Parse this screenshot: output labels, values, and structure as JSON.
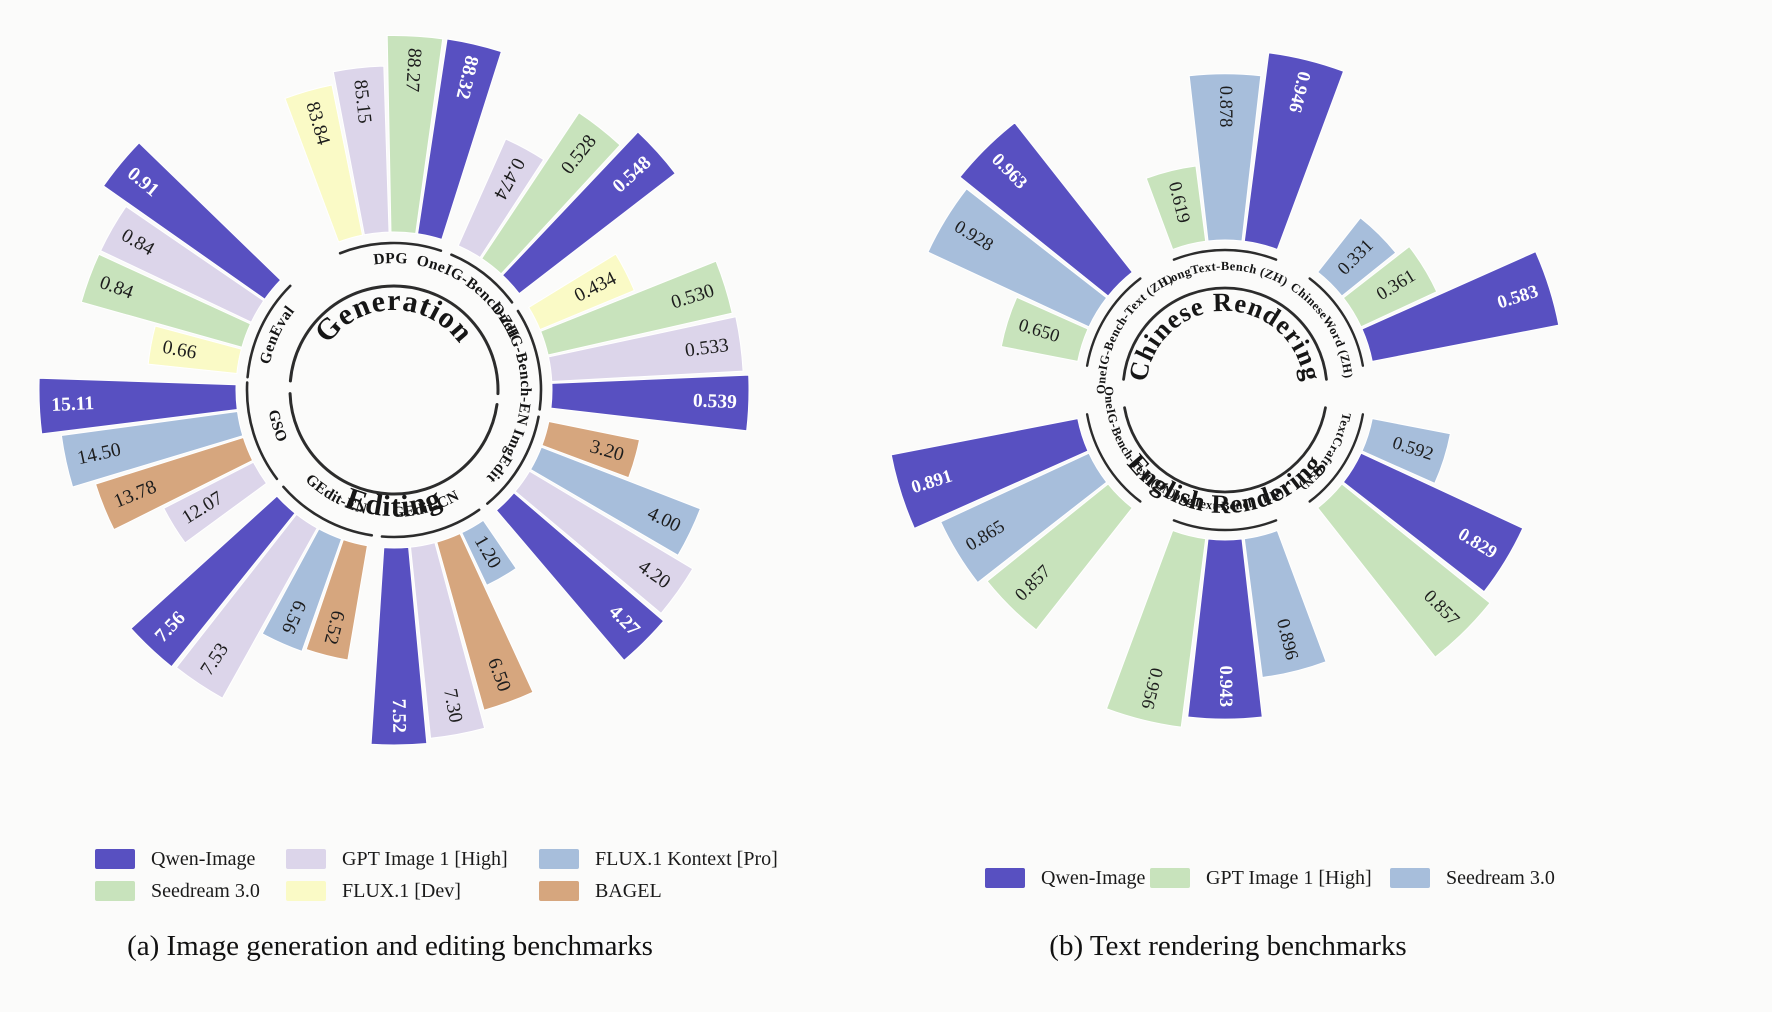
{
  "chart_data": [
    {
      "type": "radial_grouped_bar",
      "caption": "(a) Image generation and editing benchmarks",
      "series_colors": {
        "Qwen-Image": "#5850c1",
        "Seedream 3.0": "#c8e3bc",
        "GPT Image 1 [High]": "#dcd5ea",
        "FLUX.1 [Dev]": "#fafac6",
        "FLUX.1 Kontext [Pro]": "#a7bedb",
        "BAGEL": "#d6a67e"
      },
      "legend_columns": [
        [
          "Qwen-Image",
          "Seedream 3.0"
        ],
        [
          "GPT Image 1 [High]",
          "FLUX.1 [Dev]"
        ],
        [
          "FLUX.1 Kontext [Pro]",
          "BAGEL"
        ]
      ],
      "semicircles": [
        {
          "title": "Generation",
          "side": "top",
          "groups": [
            {
              "label": "GenEval",
              "start_angle": -84,
              "bars": [
                {
                  "model": "FLUX.1 [Dev]",
                  "value": "0.66"
                },
                {
                  "model": "Seedream 3.0",
                  "value": "0.84"
                },
                {
                  "model": "GPT Image 1 [High]",
                  "value": "0.84"
                },
                {
                  "model": "Qwen-Image",
                  "value": "0.91"
                }
              ]
            },
            {
              "label": "DPG",
              "start_angle": -20.5,
              "bars": [
                {
                  "model": "FLUX.1 [Dev]",
                  "value": "83.84"
                },
                {
                  "model": "GPT Image 1 [High]",
                  "value": "85.15"
                },
                {
                  "model": "Seedream 3.0",
                  "value": "88.27"
                },
                {
                  "model": "Qwen-Image",
                  "value": "88.32"
                }
              ]
            },
            {
              "label": "OneIG-Bench-ZH",
              "start_angle": 24,
              "bars": [
                {
                  "model": "GPT Image 1 [High]",
                  "value": "0.474"
                },
                {
                  "model": "Seedream 3.0",
                  "value": "0.528"
                },
                {
                  "model": "Qwen-Image",
                  "value": "0.548"
                }
              ]
            },
            {
              "label": "OneIG-Bench-EN",
              "start_angle": 58.5,
              "bars": [
                {
                  "model": "FLUX.1 [Dev]",
                  "value": "0.434"
                },
                {
                  "model": "Seedream 3.0",
                  "value": "0.530"
                },
                {
                  "model": "GPT Image 1 [High]",
                  "value": "0.533"
                },
                {
                  "model": "Qwen-Image",
                  "value": "0.539"
                }
              ]
            }
          ]
        },
        {
          "title": "Editing",
          "side": "bottom",
          "groups": [
            {
              "label": "ImgEdit",
              "start_angle": 101.5,
              "bars": [
                {
                  "model": "BAGEL",
                  "value": "3.20"
                },
                {
                  "model": "FLUX.1 Kontext [Pro]",
                  "value": "4.00"
                },
                {
                  "model": "GPT Image 1 [High]",
                  "value": "4.20"
                },
                {
                  "model": "Qwen-Image",
                  "value": "4.27"
                }
              ]
            },
            {
              "label": "GEdit-CN",
              "start_angle": 145.6,
              "bars": [
                {
                  "model": "FLUX.1 Kontext [Pro]",
                  "value": "1.20"
                },
                {
                  "model": "BAGEL",
                  "value": "6.50"
                },
                {
                  "model": "GPT Image 1 [High]",
                  "value": "7.30"
                },
                {
                  "model": "Qwen-Image",
                  "value": "7.52"
                }
              ]
            },
            {
              "label": "GEdit-EN",
              "start_angle": 189.7,
              "bars": [
                {
                  "model": "BAGEL",
                  "value": "6.52"
                },
                {
                  "model": "FLUX.1 Kontext [Pro]",
                  "value": "6.56"
                },
                {
                  "model": "GPT Image 1 [High]",
                  "value": "7.53"
                },
                {
                  "model": "Qwen-Image",
                  "value": "7.56"
                }
              ]
            },
            {
              "label": "GSO",
              "start_angle": 233.8,
              "bars": [
                {
                  "model": "GPT Image 1 [High]",
                  "value": "12.07"
                },
                {
                  "model": "BAGEL",
                  "value": "13.78"
                },
                {
                  "model": "FLUX.1 Kontext [Pro]",
                  "value": "14.50"
                },
                {
                  "model": "Qwen-Image",
                  "value": "15.11"
                }
              ]
            }
          ]
        }
      ]
    },
    {
      "type": "radial_grouped_bar",
      "caption": "(b) Text rendering benchmarks",
      "series_colors": {
        "Qwen-Image": "#5850c1",
        "GPT Image 1 [High]": "#c8e3bc",
        "Seedream 3.0": "#a7bedb"
      },
      "legend_columns": [
        [
          "Qwen-Image"
        ],
        [
          "GPT Image 1 [High]"
        ],
        [
          "Seedream 3.0"
        ]
      ],
      "semicircles": [
        {
          "title": "Chinese Rendering",
          "side": "top",
          "groups": [
            {
              "label": "OneIG-Bench-Text  (ZH)",
              "start_angle": -79,
              "bars": [
                {
                  "model": "GPT Image 1 [High]",
                  "value": "0.650"
                },
                {
                  "model": "Seedream 3.0",
                  "value": "0.928"
                },
                {
                  "model": "Qwen-Image",
                  "value": "0.963"
                }
              ]
            },
            {
              "label": "LongText-Bench  (ZH)",
              "start_angle": -20.4,
              "bars": [
                {
                  "model": "GPT Image 1 [High]",
                  "value": "0.619"
                },
                {
                  "model": "Seedream 3.0",
                  "value": "0.878"
                },
                {
                  "model": "Qwen-Image",
                  "value": "0.946"
                }
              ]
            },
            {
              "label": "ChineseWord  (ZH)",
              "start_angle": 38.2,
              "bars": [
                {
                  "model": "Seedream 3.0",
                  "value": "0.331"
                },
                {
                  "model": "GPT Image 1 [High]",
                  "value": "0.361"
                },
                {
                  "model": "Qwen-Image",
                  "value": "0.583"
                }
              ]
            }
          ]
        },
        {
          "title": "English Rendering",
          "side": "bottom",
          "groups": [
            {
              "label": "TextCraft  (EN)",
              "start_angle": 101,
              "bars": [
                {
                  "model": "Seedream 3.0",
                  "value": "0.592"
                },
                {
                  "model": "Qwen-Image",
                  "value": "0.829"
                },
                {
                  "model": "GPT Image 1 [High]",
                  "value": "0.857"
                }
              ]
            },
            {
              "label": "LongText-Bench  (EN)",
              "start_angle": 159.6,
              "bars": [
                {
                  "model": "Seedream 3.0",
                  "value": "0.896"
                },
                {
                  "model": "Qwen-Image",
                  "value": "0.943"
                },
                {
                  "model": "GPT Image 1 [High]",
                  "value": "0.956"
                }
              ]
            },
            {
              "label": "OneIG-Bench-Text  (EN)",
              "start_angle": 218.2,
              "bars": [
                {
                  "model": "GPT Image 1 [High]",
                  "value": "0.857"
                },
                {
                  "model": "Seedream 3.0",
                  "value": "0.865"
                },
                {
                  "model": "Qwen-Image",
                  "value": "0.891"
                }
              ]
            }
          ]
        }
      ]
    }
  ],
  "page": {
    "background": "#fbfbfa",
    "accent_purple": "#5850c1",
    "arc_color": "#2c2c2c"
  }
}
